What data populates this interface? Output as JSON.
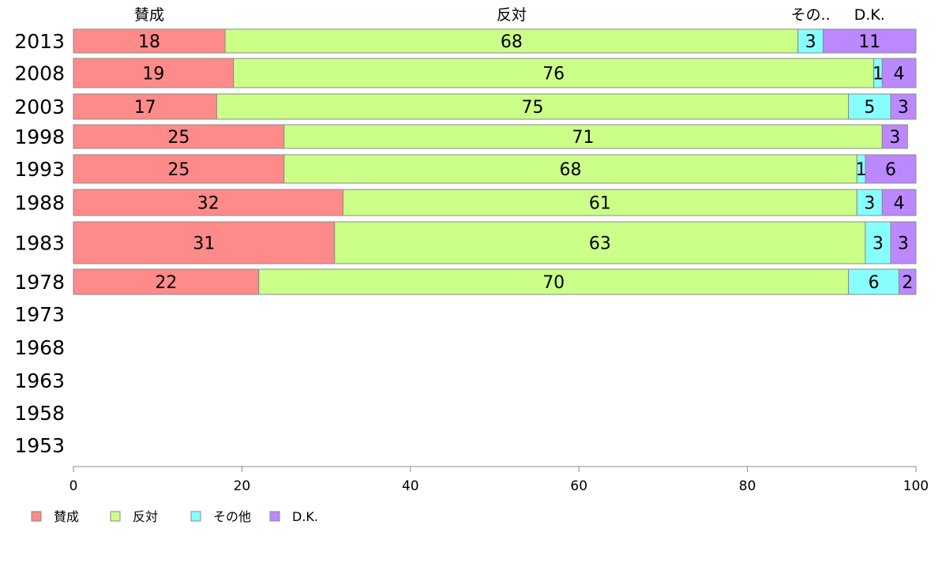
{
  "chart_data": {
    "type": "bar",
    "orientation": "horizontal",
    "stacked": true,
    "categories": [
      "2013",
      "2008",
      "2003",
      "1998",
      "1993",
      "1988",
      "1983",
      "1978",
      "1973",
      "1968",
      "1963",
      "1958",
      "1953"
    ],
    "series": [
      {
        "name": "賛成",
        "header": "賛成",
        "color": "#ff8a8a",
        "values": [
          18,
          19,
          17,
          25,
          25,
          32,
          31,
          22,
          null,
          null,
          null,
          null,
          null
        ],
        "labels": [
          "18",
          "19",
          "17",
          "25",
          "25",
          "32",
          "31",
          "22",
          "",
          "",
          "",
          "",
          ""
        ]
      },
      {
        "name": "反対",
        "header": "反対",
        "color": "#ccff88",
        "values": [
          68,
          76,
          75,
          71,
          68,
          61,
          63,
          70,
          null,
          null,
          null,
          null,
          null
        ],
        "labels": [
          "68",
          "76",
          "75",
          "71",
          "68",
          "61",
          "63",
          "70",
          "",
          "",
          "",
          "",
          ""
        ]
      },
      {
        "name": "その他",
        "header": "その..",
        "color": "#88ffff",
        "values": [
          3,
          1,
          5,
          0,
          1,
          3,
          3,
          6,
          null,
          null,
          null,
          null,
          null
        ],
        "labels": [
          "3",
          "1",
          "5",
          "",
          "1",
          "3",
          "3",
          "6",
          "",
          "",
          "",
          "",
          ""
        ]
      },
      {
        "name": "D.K.",
        "header": "D.K.",
        "color": "#bb88ff",
        "values": [
          11,
          4,
          3,
          3,
          6,
          4,
          3,
          2,
          null,
          null,
          null,
          null,
          null
        ],
        "labels": [
          "11",
          "4",
          "3",
          "3",
          "6",
          "4",
          "3",
          "2",
          "",
          "",
          "",
          "",
          ""
        ]
      }
    ],
    "xlim": [
      0,
      100
    ],
    "xticks": [
      "0",
      "20",
      "40",
      "60",
      "80",
      "100"
    ],
    "xlabel": "",
    "ylabel": "",
    "grid": false,
    "legend_position": "bottom-left"
  }
}
